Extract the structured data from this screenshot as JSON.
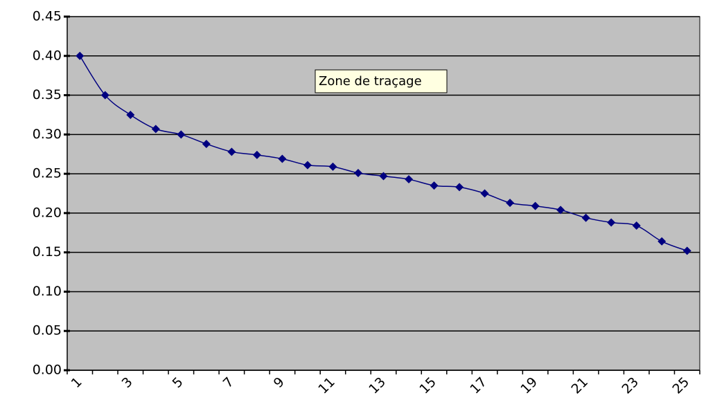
{
  "chart_data": {
    "type": "line",
    "annotation": "Zone de traçage",
    "categories": [
      "1",
      null,
      "3",
      null,
      "5",
      null,
      "7",
      null,
      "9",
      null,
      "11",
      null,
      "13",
      null,
      "15",
      null,
      "17",
      null,
      "19",
      null,
      "21",
      null,
      "23",
      null,
      "25"
    ],
    "series": [
      {
        "color": "#000080",
        "values": [
          0.4,
          0.35,
          0.325,
          0.307,
          0.3,
          0.288,
          0.278,
          0.274,
          0.269,
          0.261,
          0.259,
          0.251,
          0.247,
          0.243,
          0.235,
          0.233,
          0.225,
          0.213,
          0.209,
          0.204,
          0.194,
          0.188,
          0.184,
          0.164,
          0.152
        ]
      }
    ],
    "ylim": [
      0,
      0.45
    ],
    "yticks": [
      {
        "value": 0,
        "label": "0.00"
      },
      0.05,
      {
        "value": 0.1,
        "label": "0.10"
      },
      0.15,
      {
        "value": 0.2,
        "label": "0.20"
      },
      0.25,
      {
        "value": 0.3,
        "label": "0.30"
      },
      0.35,
      {
        "value": 0.4,
        "label": "0.40"
      },
      0.45
    ],
    "grid": true,
    "plot_background": "#c0c0c0"
  }
}
